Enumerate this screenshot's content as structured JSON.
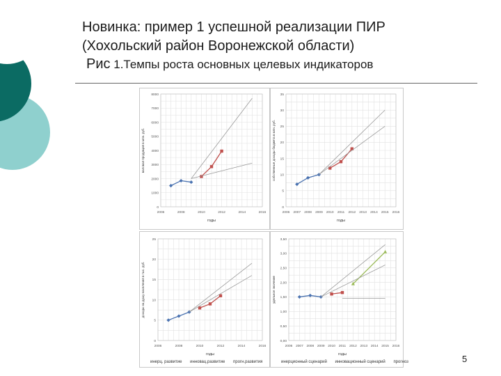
{
  "slide": {
    "title_line1": "Новинка: пример 1 успешной реализации ПИР",
    "title_line2": "(Хохольский район Воронежской области)",
    "subtitle_prefix": "Рис",
    "subtitle_text": " 1.Темпы роста основных целевых индикаторов",
    "page_number": "5",
    "accent_color": "#0b6b63",
    "accent_light": "#8fd0ce"
  },
  "chart_data": [
    {
      "type": "line",
      "ylabel": "валовая продукция в млн. руб.",
      "xlabel": "годы",
      "xlim": [
        2006,
        2016
      ],
      "ylim": [
        0,
        8000
      ],
      "x_ticks": [
        "2006",
        "2008",
        "2010",
        "2012",
        "2014",
        "2016"
      ],
      "y_ticks": [
        "0",
        "1000",
        "2000",
        "3000",
        "4000",
        "5000",
        "6000",
        "7000",
        "8000"
      ],
      "grid": true,
      "series": [
        {
          "kind": "marker",
          "color": "#4a72b0",
          "x": [
            2007,
            2008,
            2009
          ],
          "y": [
            1500,
            1850,
            1750
          ]
        },
        {
          "kind": "marker",
          "color": "#c0504d",
          "x": [
            2010,
            2011,
            2012
          ],
          "y": [
            2150,
            2850,
            3950
          ]
        },
        {
          "kind": "trend",
          "color": "#999999",
          "x": [
            2009,
            2015
          ],
          "y": [
            2000,
            7700
          ]
        },
        {
          "kind": "trend",
          "color": "#999999",
          "x": [
            2009,
            2015
          ],
          "y": [
            2000,
            3100
          ]
        }
      ]
    },
    {
      "type": "line",
      "ylabel": "собственные доходы бюджета в млн. руб.",
      "xlabel": "годы",
      "xlim": [
        2006,
        2016
      ],
      "ylim": [
        0,
        35
      ],
      "x_ticks": [
        "2006",
        "2007",
        "2008",
        "2009",
        "2010",
        "2011",
        "2012",
        "2013",
        "2014",
        "2015",
        "2016"
      ],
      "y_ticks": [
        "0",
        "5",
        "10",
        "15",
        "20",
        "25",
        "30",
        "35"
      ],
      "grid": true,
      "series": [
        {
          "kind": "marker",
          "color": "#4a72b0",
          "x": [
            2007,
            2008,
            2009
          ],
          "y": [
            7,
            9,
            10
          ]
        },
        {
          "kind": "marker",
          "color": "#c0504d",
          "x": [
            2010,
            2011,
            2012
          ],
          "y": [
            12,
            14,
            18
          ]
        },
        {
          "kind": "trend",
          "color": "#999999",
          "x": [
            2009,
            2015
          ],
          "y": [
            10,
            30
          ]
        },
        {
          "kind": "trend",
          "color": "#999999",
          "x": [
            2009,
            2015
          ],
          "y": [
            10,
            25
          ]
        }
      ]
    },
    {
      "type": "line",
      "ylabel": "доходы на душу населения в тыс. руб.",
      "xlabel": "годы",
      "xlim": [
        2006,
        2016
      ],
      "ylim": [
        0,
        25
      ],
      "x_ticks": [
        "2006",
        "2008",
        "2010",
        "2012",
        "2014",
        "2016"
      ],
      "y_ticks": [
        "0",
        "5",
        "10",
        "15",
        "20",
        "25"
      ],
      "grid": true,
      "series": [
        {
          "kind": "marker",
          "color": "#4a72b0",
          "x": [
            2007,
            2008,
            2009
          ],
          "y": [
            5,
            6,
            7
          ]
        },
        {
          "kind": "marker",
          "color": "#c0504d",
          "x": [
            2010,
            2011,
            2012
          ],
          "y": [
            8,
            9,
            11
          ]
        },
        {
          "kind": "trend",
          "color": "#999999",
          "x": [
            2009,
            2015
          ],
          "y": [
            7,
            19
          ]
        },
        {
          "kind": "trend",
          "color": "#999999",
          "x": [
            2009,
            2015
          ],
          "y": [
            7,
            16
          ]
        }
      ]
    },
    {
      "type": "line",
      "ylabel": "удельное значение",
      "xlabel": "годы",
      "xlim": [
        2006,
        2016
      ],
      "ylim": [
        0,
        3.5
      ],
      "x_ticks": [
        "2006",
        "2007",
        "2008",
        "2009",
        "2010",
        "2011",
        "2012",
        "2013",
        "2014",
        "2015",
        "2016"
      ],
      "y_ticks": [
        "0,00",
        "0,50",
        "1,00",
        "1,50",
        "2,00",
        "2,50",
        "3,00",
        "3,50"
      ],
      "grid": true,
      "series": [
        {
          "kind": "marker",
          "color": "#4a72b0",
          "x": [
            2007,
            2008,
            2009
          ],
          "y": [
            1.5,
            1.55,
            1.5
          ]
        },
        {
          "kind": "marker",
          "color": "#c0504d",
          "x": [
            2010,
            2011
          ],
          "y": [
            1.6,
            1.65
          ]
        },
        {
          "kind": "marker",
          "color": "#9bbb59",
          "x": [
            2012,
            2015
          ],
          "y": [
            1.95,
            3.05
          ]
        },
        {
          "kind": "trend",
          "color": "#999999",
          "x": [
            2009,
            2015
          ],
          "y": [
            1.5,
            3.3
          ]
        },
        {
          "kind": "trend",
          "color": "#999999",
          "x": [
            2009,
            2015
          ],
          "y": [
            1.5,
            2.6
          ]
        },
        {
          "kind": "trend",
          "color": "#999999",
          "x": [
            2011,
            2015
          ],
          "y": [
            1.45,
            1.45
          ]
        }
      ]
    }
  ],
  "legends": {
    "left": [
      "инерц. развитие",
      "инновац.развитие",
      "прогн.развития"
    ],
    "right": [
      "инерционный сценарий",
      "инновационный сценарий",
      "прогноз"
    ]
  }
}
